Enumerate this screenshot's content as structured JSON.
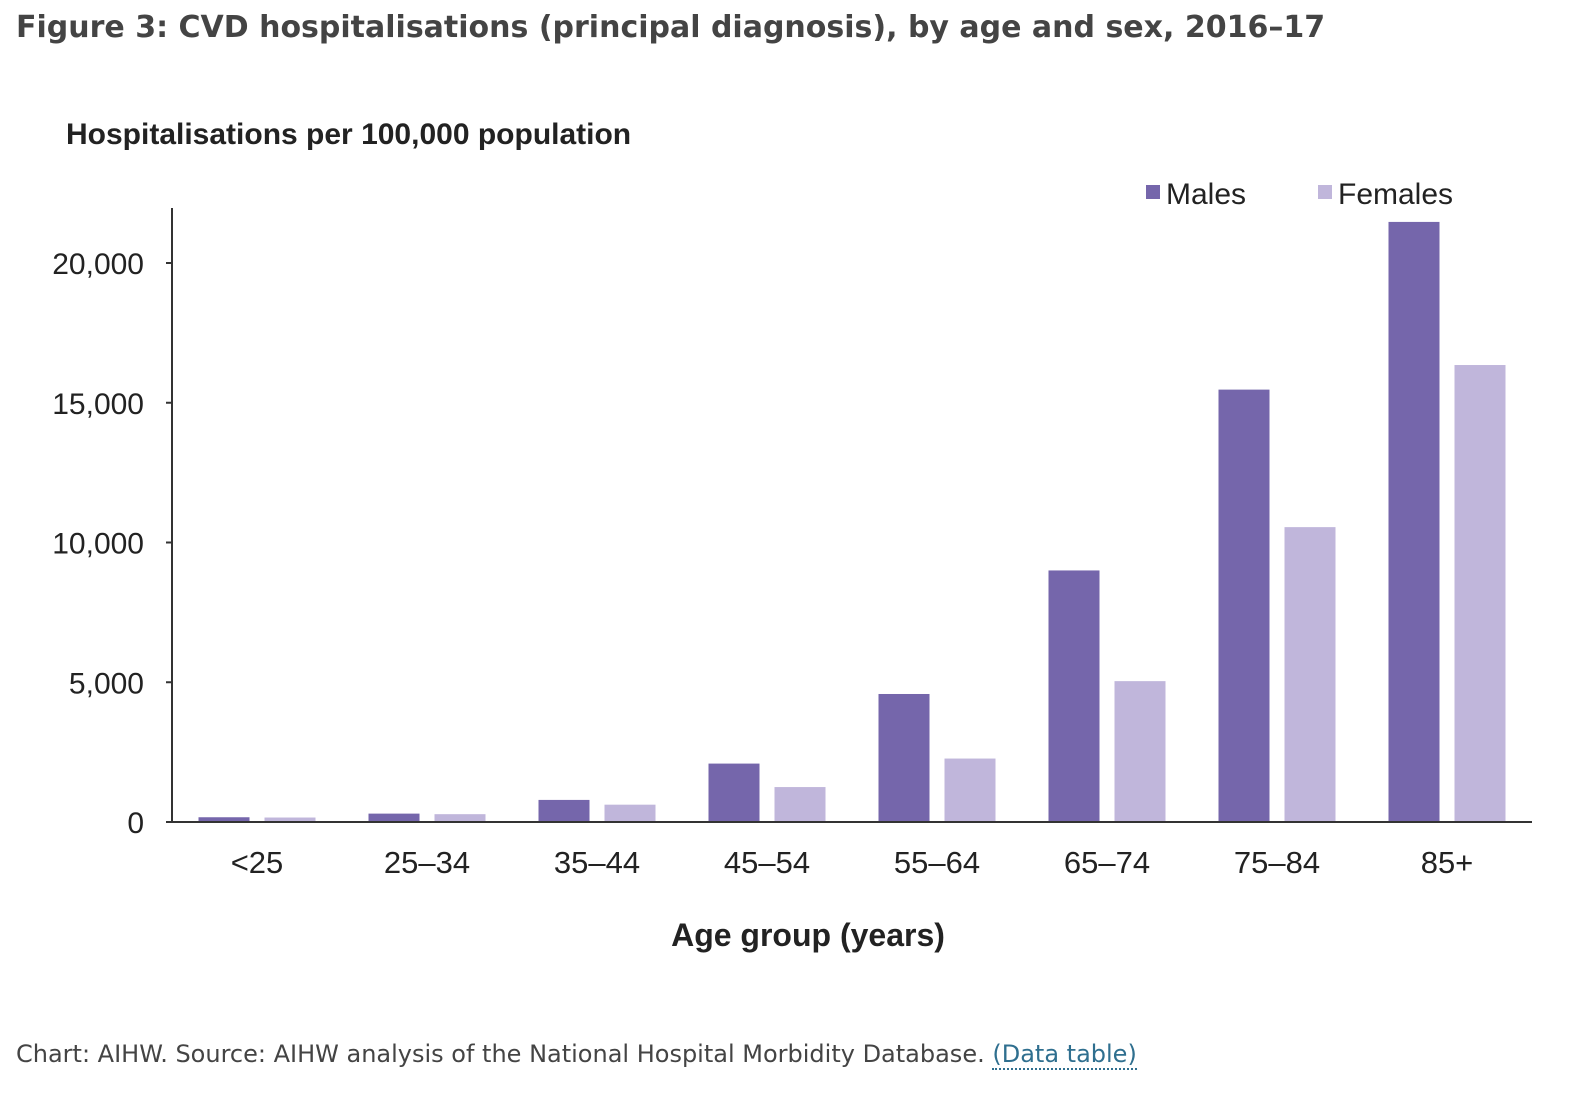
{
  "figure": {
    "title": "Figure 3: CVD hospitalisations (principal diagnosis), by age and sex, 2016–17"
  },
  "footer": {
    "text": "Chart: AIHW. Source: AIHW analysis of the National Hospital Morbidity Database.",
    "link_label": "(Data table)"
  },
  "chart_data": {
    "type": "bar",
    "title": "",
    "ylabel": "Hospitalisations per 100,000 population",
    "xlabel": "Age group (years)",
    "categories": [
      "<25",
      "25–34",
      "35–44",
      "45–54",
      "55–64",
      "65–74",
      "75–84",
      "85+"
    ],
    "series": [
      {
        "name": "Males",
        "color": "#7566ab",
        "values": [
          170,
          300,
          790,
          2090,
          4580,
          9000,
          15470,
          21470
        ]
      },
      {
        "name": "Females",
        "color": "#c0b6db",
        "values": [
          160,
          280,
          620,
          1250,
          2270,
          5040,
          10550,
          16350
        ]
      }
    ],
    "ylim": [
      0,
      22000
    ],
    "yticks": [
      0,
      5000,
      10000,
      15000,
      20000
    ],
    "ytick_labels": [
      "0",
      "5,000",
      "10,000",
      "15,000",
      "20,000"
    ],
    "legend_position": "top-right",
    "grid": false
  }
}
